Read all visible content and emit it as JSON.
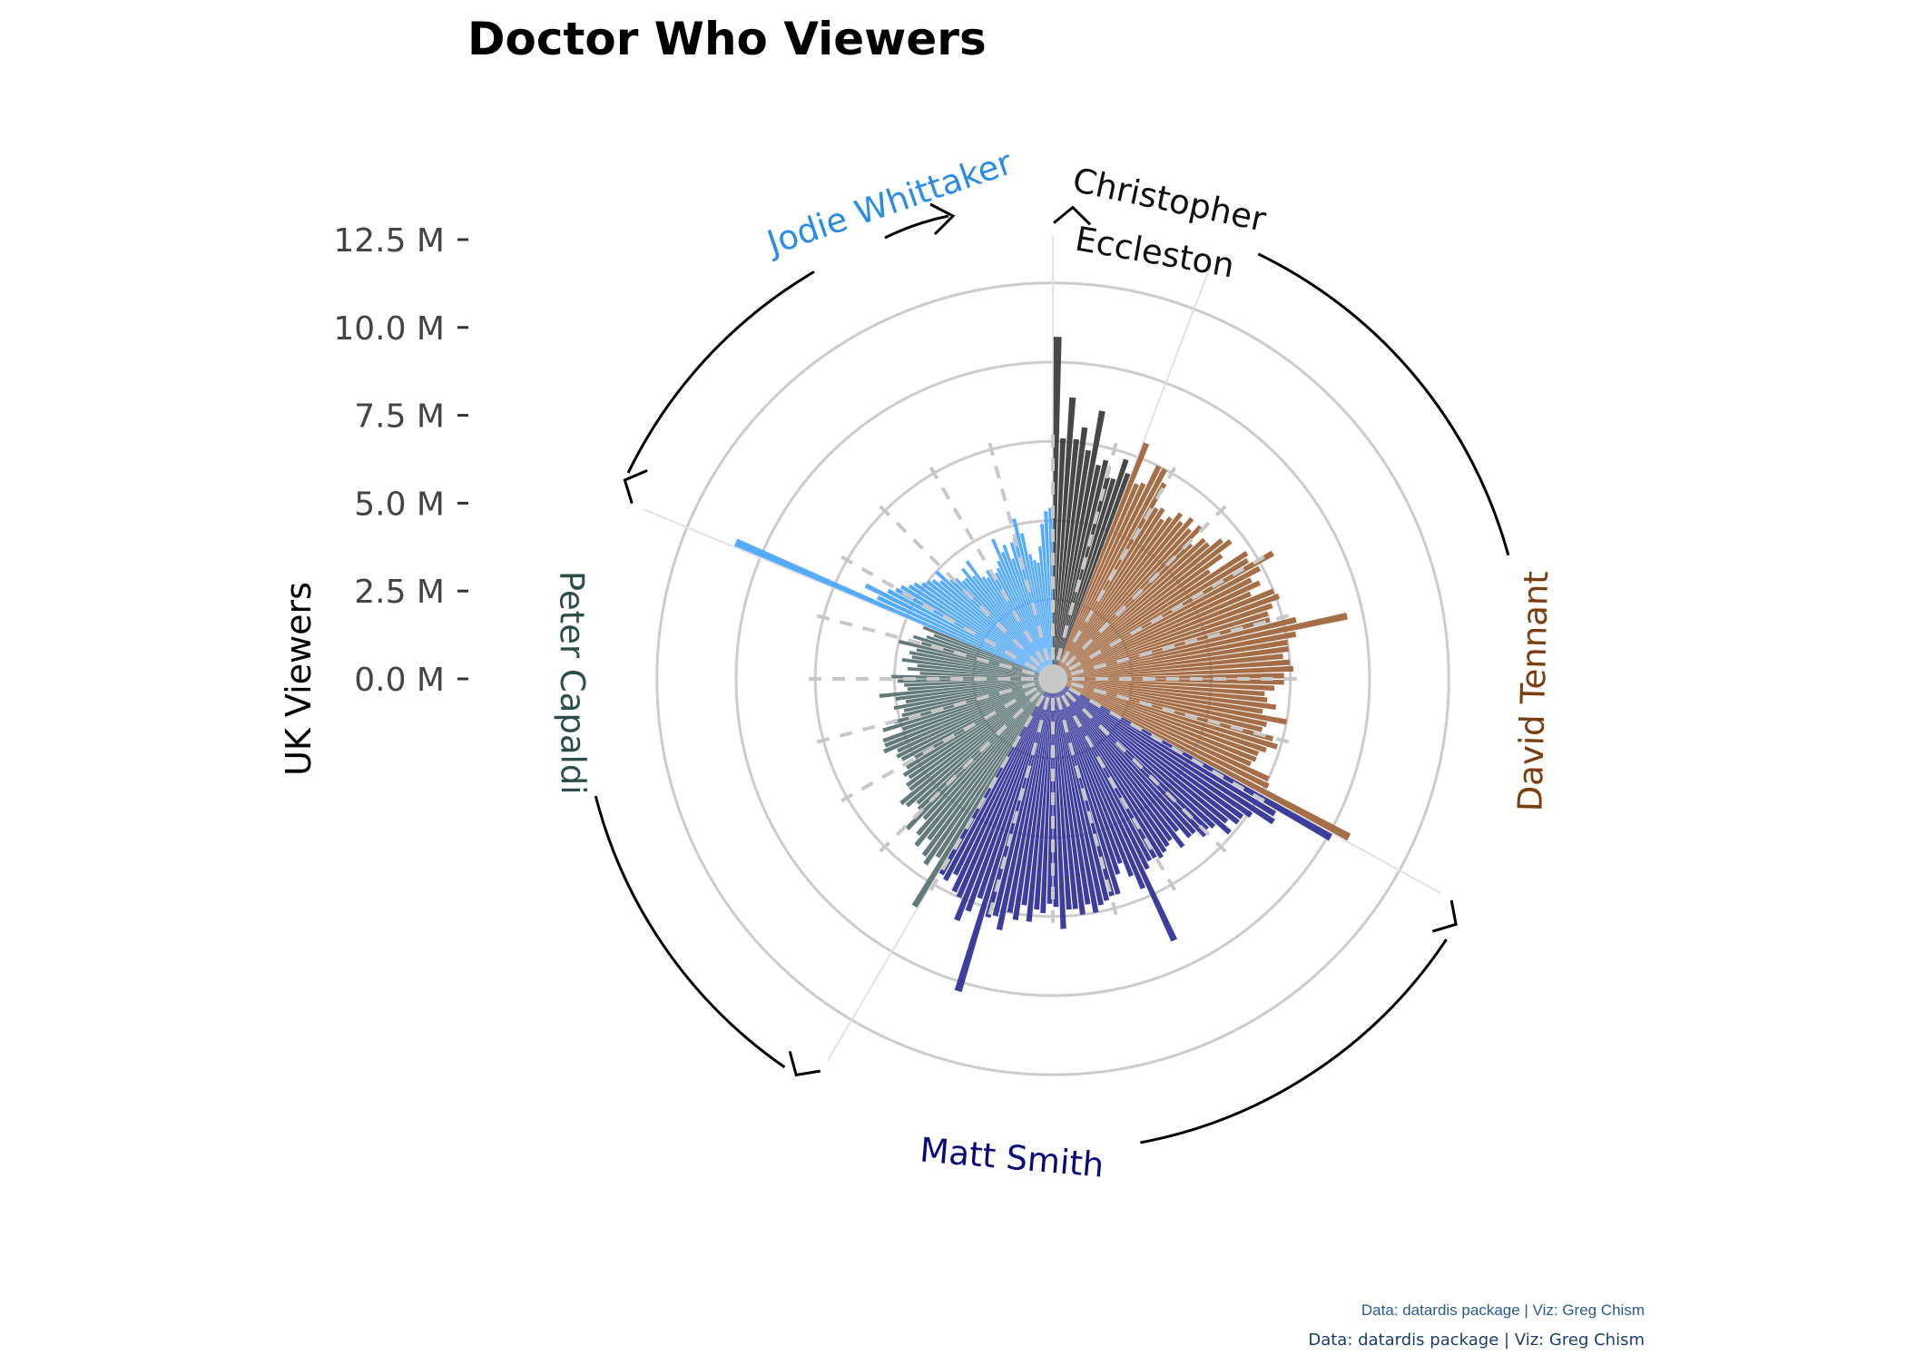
{
  "title": "Doctor Who Viewers",
  "y_axis_title": "UK Viewers",
  "caption_line1": "Data: datardis package | Viz: Greg Chism",
  "caption_line2": "Data: datardis package | Viz: Greg Chism",
  "colors": {
    "Christopher Eccleston": "#3d3d3d",
    "David Tennant": "#a0663d",
    "Matt Smith": "#333399",
    "Peter Capaldi": "#5a7373",
    "Jodie Whittaker": "#4da6ff",
    "grid": "#cccccc",
    "center_dot": "#c8c8c8"
  },
  "label_colors": {
    "Christopher Eccleston": "#111111",
    "David Tennant": "#7a3e10",
    "Matt Smith": "#0a0a7a",
    "Peter Capaldi": "#2d4d4d",
    "Jodie Whittaker": "#2b8ce6"
  },
  "chart_data": {
    "type": "bar",
    "coordinate_system": "polar",
    "title": "Doctor Who Viewers",
    "ylabel": "UK Viewers",
    "ylim": [
      0,
      12.5
    ],
    "y_ticks": [
      "0.0 M",
      "2.5 M",
      "5.0 M",
      "7.5 M",
      "10.0 M",
      "12.5 M"
    ],
    "y_tick_values": [
      0,
      2.5,
      5,
      7.5,
      10,
      12.5
    ],
    "y_unit": "million viewers",
    "grid": true,
    "legend": "none (labels around circle)",
    "series": [
      {
        "name": "Christopher Eccleston",
        "label_lines": [
          "Christopher",
          "Eccleston"
        ],
        "values": [
          10.8,
          7.6,
          8.9,
          7.6,
          8.0,
          7.3,
          8.6,
          6.9,
          7.1,
          6.6,
          6.6,
          7.3,
          6.9
        ]
      },
      {
        "name": "David Tennant",
        "label_lines": [
          "David Tennant"
        ],
        "values": [
          8.0,
          6.7,
          6.8,
          7.5,
          7.5,
          7.1,
          6.3,
          6.4,
          6.1,
          6.3,
          6.6,
          6.4,
          6.7,
          6.4,
          6.7,
          6.1,
          6.5,
          6.5,
          6.9,
          7.1,
          6.6,
          6.0,
          7.3,
          7.2,
          8.0,
          7.4,
          7.0,
          7.2,
          6.8,
          7.5,
          7.6,
          7.3,
          7.1,
          7.1,
          7.9,
          9.5,
          7.8,
          7.5,
          7.5,
          7.3,
          7.5,
          7.6,
          7.3,
          7.3,
          7.0,
          6.7,
          6.8,
          7.1,
          6.7,
          7.5,
          6.9,
          6.8,
          7.2,
          7.4,
          7.1,
          6.9,
          6.9,
          6.8,
          7.5,
          7.6,
          10.6
        ]
      },
      {
        "name": "Matt Smith",
        "label_lines": [
          "Matt Smith"
        ],
        "values": [
          10.1,
          8.2,
          8.3,
          7.6,
          7.4,
          7.4,
          7.1,
          7.4,
          6.9,
          6.8,
          6.9,
          6.6,
          6.6,
          6.2,
          6.7,
          6.3,
          6.4,
          6.5,
          6.6,
          6.5,
          6.5,
          6.7,
          9.1,
          7.2,
          6.7,
          6.2,
          6.5,
          7.1,
          7.1,
          7.2,
          7.3,
          7.5,
          7.2,
          7.5,
          7.3,
          7.3,
          7.9,
          7.2,
          7.1,
          7.4,
          7.3,
          7.7,
          7.2,
          7.7,
          7.5,
          8.1,
          7.7,
          7.8,
          10.3,
          7.3,
          7.8,
          8.2,
          7.5,
          7.4,
          6.9,
          7.2,
          7.1
        ]
      },
      {
        "name": "Peter Capaldi",
        "label_lines": [
          "Peter Capaldi"
        ],
        "values": [
          8.4,
          6.7,
          7.1,
          6.9,
          6.4,
          6.8,
          6.5,
          6.0,
          6.6,
          5.9,
          5.8,
          6.1,
          6.2,
          5.7,
          5.7,
          5.5,
          5.6,
          5.4,
          5.0,
          5.4,
          5.5,
          5.4,
          5.8,
          5.7,
          5.7,
          5.0,
          5.6,
          5.2,
          4.9,
          4.8,
          5.1,
          4.7,
          5.0,
          5.5,
          4.6,
          4.7,
          4.9,
          5.1,
          4.2,
          4.6,
          4.3,
          4.8,
          4.5,
          4.6,
          4.4,
          5.0,
          4.3,
          4.6,
          4.2,
          4.0,
          4.4
        ]
      },
      {
        "name": "Jodie Whittaker",
        "label_lines": [
          "Jodie Whittaker"
        ],
        "values": [
          10.9,
          6.1,
          6.6,
          5.9,
          5.7,
          5.6,
          5.4,
          5.3,
          5.1,
          5.0,
          4.9,
          4.7,
          5.0,
          4.5,
          4.4,
          4.2,
          4.2,
          4.5,
          4.1,
          4.6,
          3.9,
          3.8,
          4.0,
          3.6,
          3.8,
          3.9,
          4.1,
          4.8,
          4.3,
          4.5,
          4.0,
          4.5,
          4.6,
          5.2,
          4.7,
          4.0,
          3.8,
          3.7,
          4.2,
          4.9,
          5.3,
          5.4
        ]
      }
    ]
  }
}
